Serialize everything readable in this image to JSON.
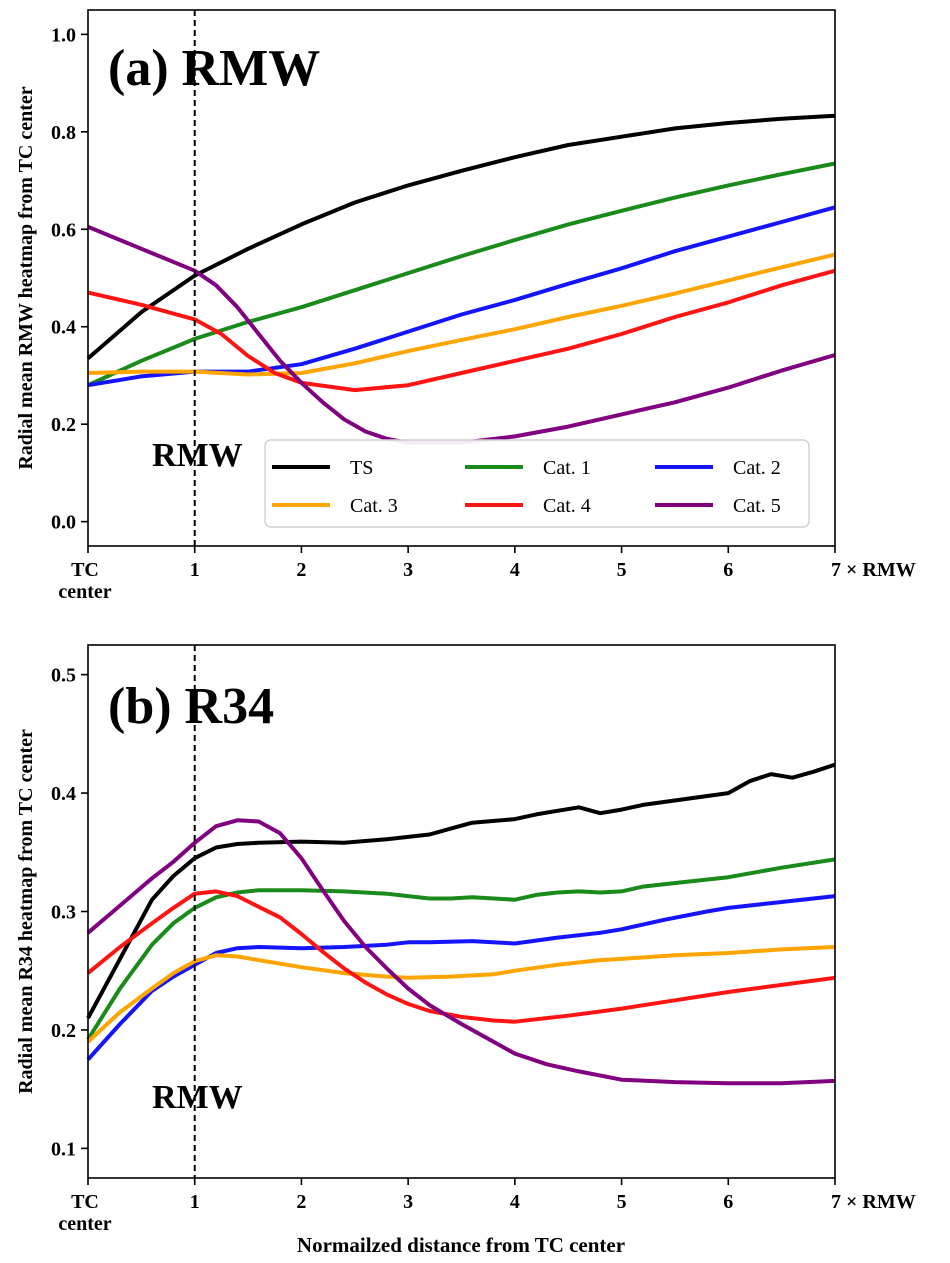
{
  "figure": {
    "x_title": "Normailzed distance from TC center"
  },
  "chart_data": [
    {
      "type": "line",
      "title": "(a) RMW",
      "ylabel": "Radial mean RMW heatmap from TC center",
      "xlabel": "",
      "xlim": [
        0,
        7
      ],
      "ylim": [
        -0.05,
        1.05
      ],
      "x_tick_values": [
        0,
        1,
        2,
        3,
        4,
        5,
        6,
        7
      ],
      "x_tick_labels": [
        "TC\ncenter",
        "1",
        "2",
        "3",
        "4",
        "5",
        "6",
        "7 × RMW"
      ],
      "y_ticks": [
        0.0,
        0.2,
        0.4,
        0.6,
        0.8,
        1.0
      ],
      "y_tick_labels": [
        "0.0",
        "0.2",
        "0.4",
        "0.6",
        "0.8",
        "1.0"
      ],
      "vline": {
        "x": 1,
        "style": "dashed",
        "label": "RMW"
      },
      "legend": {
        "placement": "lower-right",
        "columns": 3
      },
      "series": [
        {
          "name": "TS",
          "color": "#000000",
          "x": [
            0,
            0.5,
            1,
            1.5,
            2,
            2.5,
            3,
            3.5,
            4,
            4.5,
            5,
            5.5,
            6,
            6.5,
            7
          ],
          "y": [
            0.335,
            0.43,
            0.505,
            0.56,
            0.61,
            0.655,
            0.69,
            0.72,
            0.748,
            0.773,
            0.79,
            0.807,
            0.818,
            0.827,
            0.833
          ]
        },
        {
          "name": "Cat. 1",
          "color": "#1a8a1a",
          "x": [
            0,
            0.5,
            1,
            1.5,
            2,
            2.5,
            3,
            3.5,
            4,
            4.5,
            5,
            5.5,
            6,
            6.5,
            7
          ],
          "y": [
            0.28,
            0.33,
            0.375,
            0.41,
            0.44,
            0.475,
            0.51,
            0.545,
            0.578,
            0.61,
            0.638,
            0.665,
            0.69,
            0.713,
            0.735
          ]
        },
        {
          "name": "Cat. 2",
          "color": "#1414ff",
          "x": [
            0,
            0.5,
            1,
            1.5,
            2,
            2.5,
            3,
            3.5,
            4,
            4.5,
            5,
            5.5,
            6,
            6.5,
            7
          ],
          "y": [
            0.28,
            0.298,
            0.308,
            0.308,
            0.323,
            0.355,
            0.39,
            0.425,
            0.455,
            0.488,
            0.52,
            0.555,
            0.585,
            0.615,
            0.645
          ]
        },
        {
          "name": "Cat. 3",
          "color": "#ffa500",
          "x": [
            0,
            0.5,
            1,
            1.5,
            2,
            2.5,
            3,
            3.5,
            4,
            4.5,
            5,
            5.5,
            6,
            6.5,
            7
          ],
          "y": [
            0.305,
            0.308,
            0.308,
            0.302,
            0.305,
            0.325,
            0.35,
            0.373,
            0.395,
            0.42,
            0.443,
            0.468,
            0.495,
            0.522,
            0.548
          ]
        },
        {
          "name": "Cat. 4",
          "color": "#ff1414",
          "x": [
            0,
            0.5,
            1,
            1.25,
            1.5,
            1.75,
            2,
            2.5,
            3,
            3.5,
            4,
            4.5,
            5,
            5.5,
            6,
            6.5,
            7
          ],
          "y": [
            0.47,
            0.445,
            0.415,
            0.385,
            0.34,
            0.305,
            0.285,
            0.27,
            0.28,
            0.305,
            0.33,
            0.355,
            0.385,
            0.42,
            0.45,
            0.485,
            0.515
          ]
        },
        {
          "name": "Cat. 5",
          "color": "#800080",
          "x": [
            0,
            0.5,
            1,
            1.2,
            1.4,
            1.6,
            1.8,
            2,
            2.2,
            2.4,
            2.6,
            2.8,
            3,
            3.5,
            4,
            4.5,
            5,
            5.5,
            6,
            6.5,
            7
          ],
          "y": [
            0.605,
            0.56,
            0.515,
            0.485,
            0.44,
            0.385,
            0.33,
            0.285,
            0.245,
            0.21,
            0.185,
            0.17,
            0.162,
            0.162,
            0.175,
            0.195,
            0.22,
            0.245,
            0.275,
            0.31,
            0.342
          ]
        }
      ]
    },
    {
      "type": "line",
      "title": "(b) R34",
      "ylabel": "Radial mean R34 heatmap from TC center",
      "xlabel": "Normailzed distance from TC center",
      "xlim": [
        0,
        7
      ],
      "ylim": [
        0.075,
        0.525
      ],
      "x_tick_values": [
        0,
        1,
        2,
        3,
        4,
        5,
        6,
        7
      ],
      "x_tick_labels": [
        "TC\ncenter",
        "1",
        "2",
        "3",
        "4",
        "5",
        "6",
        "7 × RMW"
      ],
      "y_ticks": [
        0.1,
        0.2,
        0.3,
        0.4,
        0.5
      ],
      "y_tick_labels": [
        "0.1",
        "0.2",
        "0.3",
        "0.4",
        "0.5"
      ],
      "vline": {
        "x": 1,
        "style": "dashed",
        "label": "RMW"
      },
      "series": [
        {
          "name": "TS",
          "color": "#000000",
          "x": [
            0,
            0.3,
            0.6,
            0.8,
            1,
            1.2,
            1.4,
            1.6,
            2,
            2.4,
            2.8,
            3,
            3.2,
            3.4,
            3.6,
            4,
            4.2,
            4.4,
            4.6,
            4.8,
            5,
            5.2,
            5.6,
            6,
            6.2,
            6.4,
            6.6,
            6.8,
            7
          ],
          "y": [
            0.21,
            0.26,
            0.31,
            0.33,
            0.345,
            0.354,
            0.357,
            0.358,
            0.359,
            0.358,
            0.361,
            0.363,
            0.365,
            0.37,
            0.375,
            0.378,
            0.382,
            0.385,
            0.388,
            0.383,
            0.386,
            0.39,
            0.395,
            0.4,
            0.41,
            0.416,
            0.413,
            0.418,
            0.424
          ]
        },
        {
          "name": "Cat. 1",
          "color": "#1a8a1a",
          "x": [
            0,
            0.3,
            0.6,
            0.8,
            1,
            1.2,
            1.4,
            1.6,
            2,
            2.4,
            2.8,
            3,
            3.2,
            3.4,
            3.6,
            4,
            4.2,
            4.4,
            4.6,
            4.8,
            5,
            5.2,
            5.6,
            6,
            6.5,
            7
          ],
          "y": [
            0.192,
            0.235,
            0.272,
            0.29,
            0.303,
            0.312,
            0.316,
            0.318,
            0.318,
            0.317,
            0.315,
            0.313,
            0.311,
            0.311,
            0.312,
            0.31,
            0.314,
            0.316,
            0.317,
            0.316,
            0.317,
            0.321,
            0.325,
            0.329,
            0.337,
            0.344
          ]
        },
        {
          "name": "Cat. 2",
          "color": "#1414ff",
          "x": [
            0,
            0.3,
            0.6,
            0.8,
            1,
            1.2,
            1.4,
            1.6,
            2,
            2.4,
            2.8,
            3,
            3.2,
            3.6,
            4,
            4.4,
            4.8,
            5,
            5.4,
            5.8,
            6,
            6.5,
            7
          ],
          "y": [
            0.175,
            0.205,
            0.233,
            0.245,
            0.255,
            0.265,
            0.269,
            0.27,
            0.269,
            0.27,
            0.272,
            0.274,
            0.274,
            0.275,
            0.273,
            0.278,
            0.282,
            0.285,
            0.293,
            0.3,
            0.303,
            0.308,
            0.313
          ]
        },
        {
          "name": "Cat. 3",
          "color": "#ffa500",
          "x": [
            0,
            0.3,
            0.6,
            0.8,
            1,
            1.2,
            1.4,
            1.6,
            2,
            2.4,
            2.8,
            3,
            3.4,
            3.8,
            4,
            4.4,
            4.8,
            5,
            5.5,
            6,
            6.5,
            7
          ],
          "y": [
            0.19,
            0.215,
            0.235,
            0.248,
            0.258,
            0.263,
            0.262,
            0.259,
            0.253,
            0.248,
            0.245,
            0.244,
            0.245,
            0.247,
            0.25,
            0.255,
            0.259,
            0.26,
            0.263,
            0.265,
            0.268,
            0.27
          ]
        },
        {
          "name": "Cat. 4",
          "color": "#ff1414",
          "x": [
            0,
            0.3,
            0.6,
            0.8,
            1,
            1.2,
            1.4,
            1.6,
            1.8,
            2,
            2.2,
            2.4,
            2.6,
            2.8,
            3,
            3.2,
            3.5,
            3.8,
            4,
            4.5,
            5,
            5.5,
            6,
            6.5,
            7
          ],
          "y": [
            0.248,
            0.27,
            0.29,
            0.303,
            0.315,
            0.317,
            0.313,
            0.304,
            0.295,
            0.281,
            0.266,
            0.252,
            0.24,
            0.23,
            0.222,
            0.216,
            0.211,
            0.208,
            0.207,
            0.212,
            0.218,
            0.225,
            0.232,
            0.238,
            0.244
          ]
        },
        {
          "name": "Cat. 5",
          "color": "#800080",
          "x": [
            0,
            0.3,
            0.6,
            0.8,
            1,
            1.2,
            1.4,
            1.6,
            1.8,
            2,
            2.2,
            2.4,
            2.6,
            2.8,
            3,
            3.2,
            3.5,
            3.8,
            4,
            4.3,
            4.6,
            5,
            5.5,
            6,
            6.5,
            7
          ],
          "y": [
            0.282,
            0.305,
            0.328,
            0.342,
            0.358,
            0.372,
            0.377,
            0.376,
            0.366,
            0.345,
            0.318,
            0.292,
            0.27,
            0.252,
            0.235,
            0.221,
            0.205,
            0.19,
            0.18,
            0.171,
            0.165,
            0.158,
            0.156,
            0.155,
            0.155,
            0.157
          ]
        }
      ]
    }
  ]
}
